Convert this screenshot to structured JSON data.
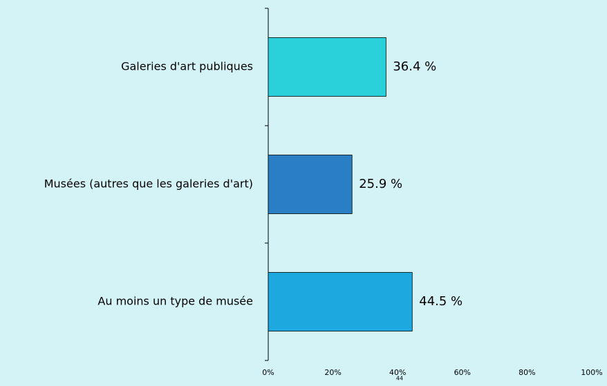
{
  "chart_data": {
    "type": "barh",
    "categories": [
      "Galeries d'art publiques",
      "Musées (autres que les galeries d'art)",
      "Au moins un type de musée"
    ],
    "values": [
      36.4,
      25.9,
      44.5
    ],
    "value_labels": [
      "36.4 %",
      "25.9 %",
      "44.5 %"
    ],
    "colors": [
      "#29cfd9",
      "#2a7fc4",
      "#1ea8e0"
    ],
    "xlim": [
      0,
      100
    ],
    "xticks": [
      {
        "value": 0,
        "label": "0%"
      },
      {
        "value": 20,
        "label": "20%"
      },
      {
        "value": 40,
        "label": "40%"
      },
      {
        "value": 60,
        "label": "60%"
      },
      {
        "value": 80,
        "label": "80%"
      },
      {
        "value": 100,
        "label": "100%"
      }
    ],
    "page_number": "44"
  }
}
